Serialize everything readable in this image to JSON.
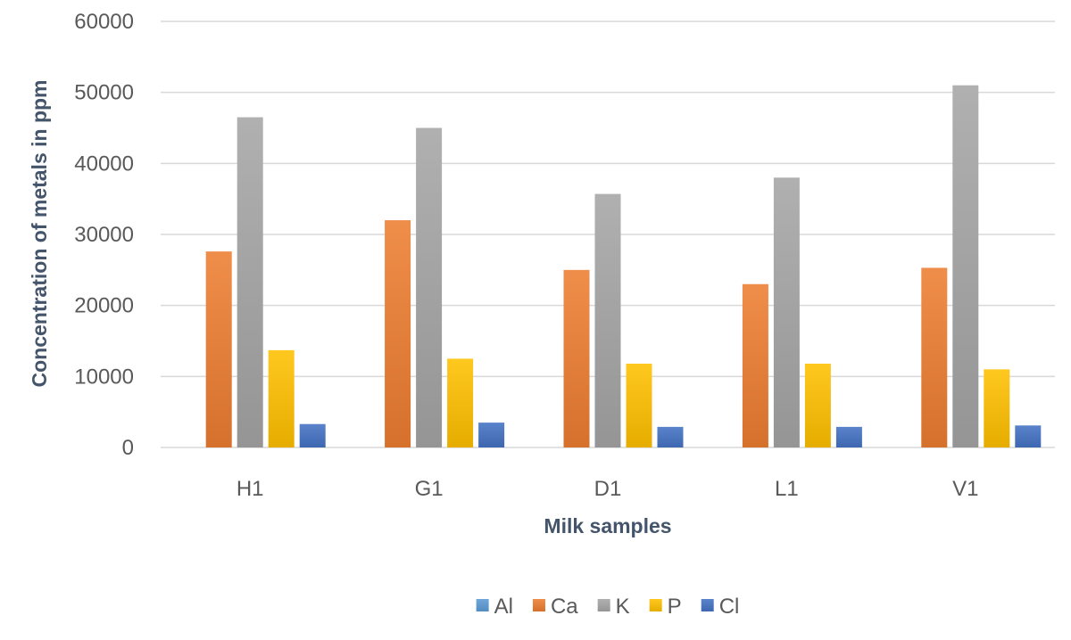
{
  "chart_data": {
    "type": "bar",
    "title": "",
    "xlabel": "Milk samples",
    "ylabel": "Concentration of metals in ppm",
    "categories": [
      "H1",
      "G1",
      "D1",
      "L1",
      "V1"
    ],
    "ylim": [
      0,
      60000
    ],
    "yticks": [
      0,
      10000,
      20000,
      30000,
      40000,
      50000,
      60000
    ],
    "grid": true,
    "legend_position": "bottom",
    "series": [
      {
        "name": "Al",
        "color": "#5b9bd5",
        "values": [
          0,
          0,
          0,
          0,
          0
        ]
      },
      {
        "name": "Ca",
        "color": "#ed7d31",
        "values": [
          27600,
          32000,
          25000,
          23000,
          25300
        ]
      },
      {
        "name": "K",
        "color": "#a5a5a5",
        "values": [
          46500,
          45000,
          35700,
          38000,
          51000
        ]
      },
      {
        "name": "P",
        "color": "#ffc000",
        "values": [
          13700,
          12500,
          11800,
          11800,
          11000
        ]
      },
      {
        "name": "Cl",
        "color": "#4472c4",
        "values": [
          3300,
          3500,
          2900,
          2900,
          3100
        ]
      }
    ]
  }
}
